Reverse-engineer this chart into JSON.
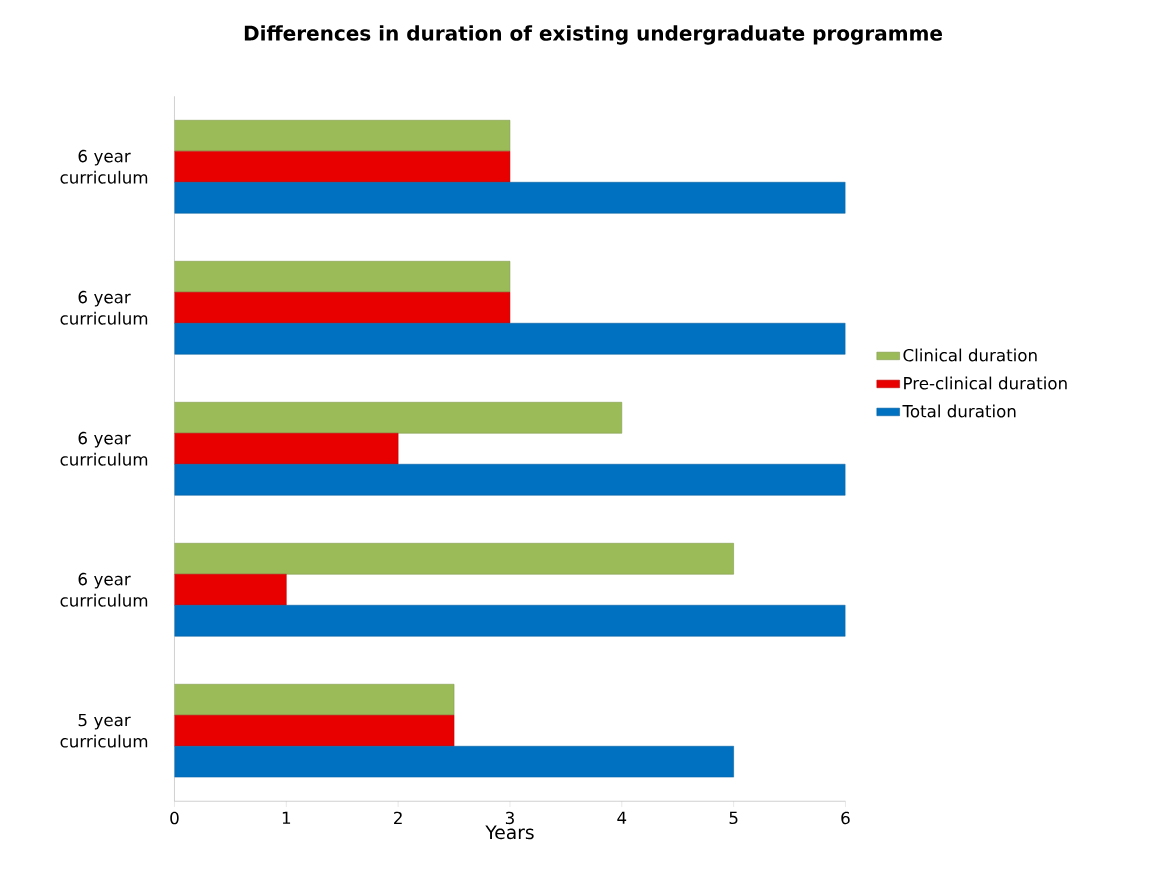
{
  "chart_data": {
    "type": "bar",
    "orientation": "horizontal",
    "title": "Differences in duration of existing undergraduate programme",
    "xlabel": "Years",
    "categories": [
      "6 year curriculum",
      "6 year curriculum",
      "6 year curriculum",
      "6 year curriculum",
      "5 year curriculum"
    ],
    "series": [
      {
        "name": "Clinical duration",
        "color": "#9bbb59",
        "values": [
          3,
          3,
          4,
          5,
          2.5
        ]
      },
      {
        "name": "Pre-clinical duration",
        "color": "#e80000",
        "values": [
          3,
          3,
          2,
          1,
          2.5
        ]
      },
      {
        "name": "Total duration",
        "color": "#0070c0",
        "values": [
          6,
          6,
          6,
          6,
          5
        ]
      }
    ],
    "xlim": [
      0,
      6
    ],
    "xticks": [
      0,
      1,
      2,
      3,
      4,
      5,
      6
    ],
    "legend": "right"
  }
}
